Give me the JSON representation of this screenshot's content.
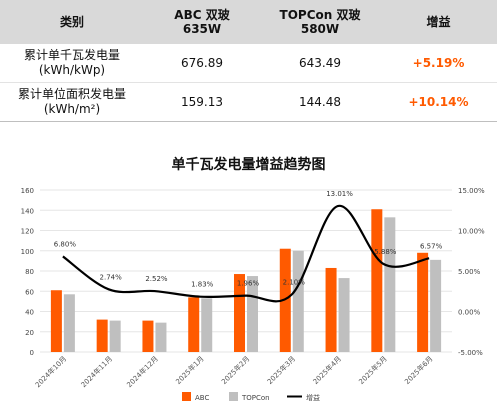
{
  "table": {
    "headers": [
      "类别",
      [
        "ABC 双玻",
        "635W"
      ],
      [
        "TOPCon 双玻",
        "580W"
      ],
      "增益"
    ],
    "rows": [
      {
        "label": [
          "累计单千瓦发电量",
          "(kWh/kWp)"
        ],
        "abc": "676.89",
        "topcon": "643.49",
        "gain": "+5.19%"
      },
      {
        "label": [
          "累计单位面积发电量",
          "(kWh/m²)"
        ],
        "abc": "159.13",
        "topcon": "144.48",
        "gain": "+10.14%"
      }
    ]
  },
  "chart_data": {
    "type": "bar",
    "title": "单千瓦发电量增益趋势图",
    "categories": [
      "2024年10月",
      "2024年11月",
      "2024年12月",
      "2025年1月",
      "2025年2月",
      "2025年3月",
      "2025年4月",
      "2025年5月",
      "2025年6月"
    ],
    "series": [
      {
        "name": "ABC",
        "type": "bar",
        "axis": "left",
        "color": "#ff5a00",
        "values": [
          61,
          32,
          31,
          54,
          77,
          102,
          83,
          141,
          98
        ]
      },
      {
        "name": "TOPCon",
        "type": "bar",
        "axis": "left",
        "color": "#bfbfbf",
        "values": [
          57,
          31,
          29,
          53,
          75,
          100,
          73,
          133,
          91
        ]
      },
      {
        "name": "增益",
        "type": "line",
        "axis": "right",
        "color": "#000000",
        "values": [
          6.8,
          2.74,
          2.52,
          1.83,
          1.96,
          2.1,
          13.01,
          5.88,
          6.57
        ]
      }
    ],
    "point_labels": [
      "6.80%",
      "2.74%",
      "2.52%",
      "1.83%",
      "1.96%",
      "2.10%",
      "13.01%",
      "5.88%",
      "6.57%"
    ],
    "ylim": [
      0,
      160
    ],
    "yticks": [
      "0",
      "20",
      "40",
      "60",
      "80",
      "100",
      "120",
      "140",
      "160"
    ],
    "y2lim": [
      -5,
      15
    ],
    "y2ticks": [
      "-5.00%",
      "0.00%",
      "5.00%",
      "10.00%",
      "15.00%"
    ],
    "legend_position": "bottom"
  }
}
